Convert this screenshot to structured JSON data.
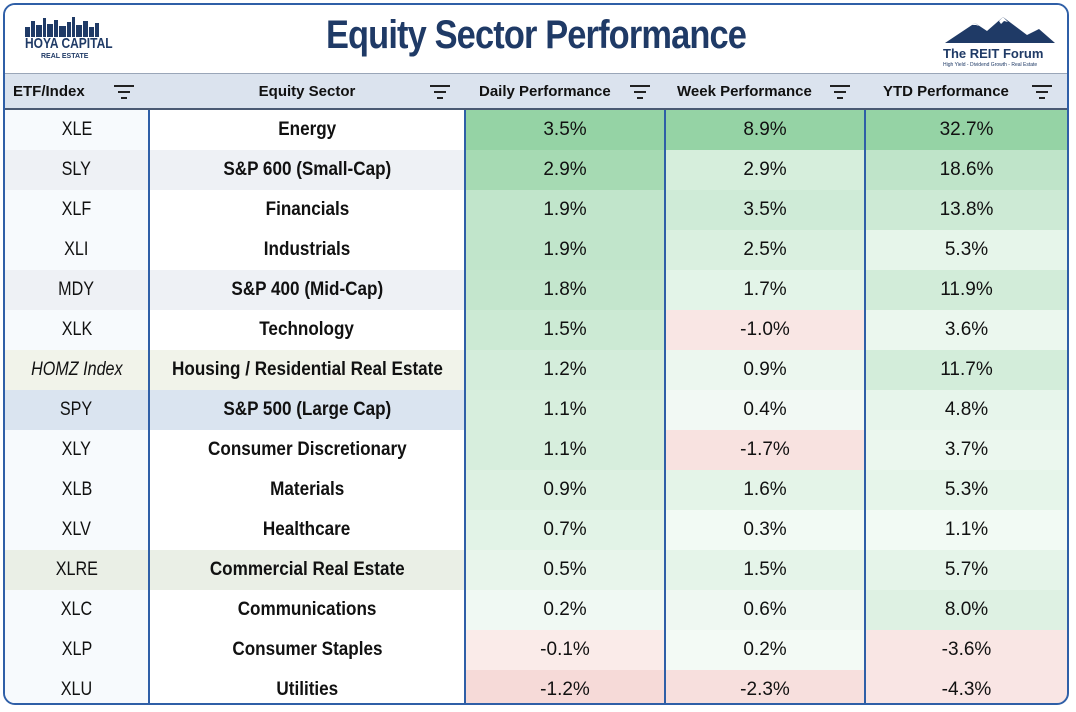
{
  "header": {
    "title": "Equity Sector Performance",
    "logo_left_name": "HOYA CAPITAL",
    "logo_left_sub": "REAL ESTATE",
    "logo_right_name": "The REIT Forum",
    "logo_right_sub": "High Yield - Dividend Growth - Real Estate"
  },
  "colors": {
    "title": "#1f3a66",
    "border": "#2f5fa7",
    "header_bg": "#dbe3ee",
    "positive": "#63be7b",
    "negative": "#e8a09a"
  },
  "chart_data": {
    "type": "table",
    "title": "Equity Sector Performance",
    "columns": [
      "ETF/Index",
      "Equity Sector",
      "Daily Performance",
      "Week Performance",
      "YTD Performance"
    ],
    "rows": [
      {
        "ticker": "XLE",
        "sector": "Energy",
        "daily": "3.5%",
        "week": "8.9%",
        "ytd": "32.7%",
        "daily_v": 3.5,
        "week_v": 8.9,
        "ytd_v": 32.7,
        "tick_bg": "#f7fafd"
      },
      {
        "ticker": "SLY",
        "sector": "S&P 600 (Small-Cap)",
        "daily": "2.9%",
        "week": "2.9%",
        "ytd": "18.6%",
        "daily_v": 2.9,
        "week_v": 2.9,
        "ytd_v": 18.6,
        "tick_bg": "#eef1f5"
      },
      {
        "ticker": "XLF",
        "sector": "Financials",
        "daily": "1.9%",
        "week": "3.5%",
        "ytd": "13.8%",
        "daily_v": 1.9,
        "week_v": 3.5,
        "ytd_v": 13.8,
        "tick_bg": "#f7fafd"
      },
      {
        "ticker": "XLI",
        "sector": "Industrials",
        "daily": "1.9%",
        "week": "2.5%",
        "ytd": "5.3%",
        "daily_v": 1.9,
        "week_v": 2.5,
        "ytd_v": 5.3,
        "tick_bg": "#f7fafd"
      },
      {
        "ticker": "MDY",
        "sector": "S&P 400 (Mid-Cap)",
        "daily": "1.8%",
        "week": "1.7%",
        "ytd": "11.9%",
        "daily_v": 1.8,
        "week_v": 1.7,
        "ytd_v": 11.9,
        "tick_bg": "#eef1f5"
      },
      {
        "ticker": "XLK",
        "sector": "Technology",
        "daily": "1.5%",
        "week": "-1.0%",
        "ytd": "3.6%",
        "daily_v": 1.5,
        "week_v": -1.0,
        "ytd_v": 3.6,
        "tick_bg": "#f7fafd"
      },
      {
        "ticker": "HOMZ Index",
        "sector": "Housing / Residential Real Estate",
        "daily": "1.2%",
        "week": "0.9%",
        "ytd": "11.7%",
        "daily_v": 1.2,
        "week_v": 0.9,
        "ytd_v": 11.7,
        "tick_bg": "#f1f3ea"
      },
      {
        "ticker": "SPY",
        "sector": "S&P 500 (Large Cap)",
        "daily": "1.1%",
        "week": "0.4%",
        "ytd": "4.8%",
        "daily_v": 1.1,
        "week_v": 0.4,
        "ytd_v": 4.8,
        "tick_bg": "#dae4f0"
      },
      {
        "ticker": "XLY",
        "sector": "Consumer Discretionary",
        "daily": "1.1%",
        "week": "-1.7%",
        "ytd": "3.7%",
        "daily_v": 1.1,
        "week_v": -1.7,
        "ytd_v": 3.7,
        "tick_bg": "#f7fafd"
      },
      {
        "ticker": "XLB",
        "sector": "Materials",
        "daily": "0.9%",
        "week": "1.6%",
        "ytd": "5.3%",
        "daily_v": 0.9,
        "week_v": 1.6,
        "ytd_v": 5.3,
        "tick_bg": "#f7fafd"
      },
      {
        "ticker": "XLV",
        "sector": "Healthcare",
        "daily": "0.7%",
        "week": "0.3%",
        "ytd": "1.1%",
        "daily_v": 0.7,
        "week_v": 0.3,
        "ytd_v": 1.1,
        "tick_bg": "#f7fafd"
      },
      {
        "ticker": "XLRE",
        "sector": "Commercial Real Estate",
        "daily": "0.5%",
        "week": "1.5%",
        "ytd": "5.7%",
        "daily_v": 0.5,
        "week_v": 1.5,
        "ytd_v": 5.7,
        "tick_bg": "#eaefe6"
      },
      {
        "ticker": "XLC",
        "sector": "Communications",
        "daily": "0.2%",
        "week": "0.6%",
        "ytd": "8.0%",
        "daily_v": 0.2,
        "week_v": 0.6,
        "ytd_v": 8.0,
        "tick_bg": "#f7fafd"
      },
      {
        "ticker": "XLP",
        "sector": "Consumer Staples",
        "daily": "-0.1%",
        "week": "0.2%",
        "ytd": "-3.6%",
        "daily_v": -0.1,
        "week_v": 0.2,
        "ytd_v": -3.6,
        "tick_bg": "#f7fafd"
      },
      {
        "ticker": "XLU",
        "sector": "Utilities",
        "daily": "-1.2%",
        "week": "-2.3%",
        "ytd": "-4.3%",
        "daily_v": -1.2,
        "week_v": -2.3,
        "ytd_v": -4.3,
        "tick_bg": "#f7fafd"
      }
    ]
  }
}
